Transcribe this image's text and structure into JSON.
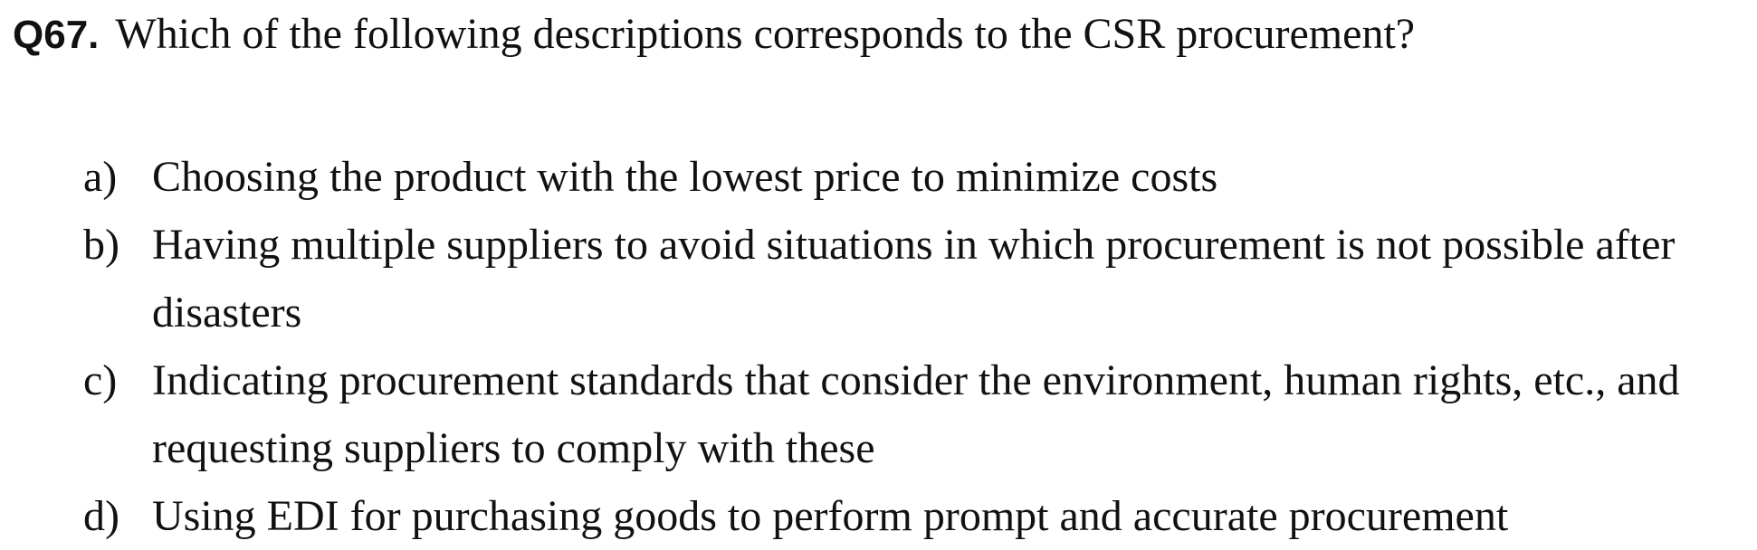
{
  "question": {
    "number": "Q67.",
    "text": "Which of the following descriptions corresponds to the CSR procurement?"
  },
  "options": [
    {
      "letter": "a)",
      "text": "Choosing the product with the lowest price to minimize costs"
    },
    {
      "letter": "b)",
      "text": "Having multiple suppliers to avoid situations in which procurement is not possible after disasters"
    },
    {
      "letter": "c)",
      "text": "Indicating procurement standards that consider the environment, human rights, etc., and requesting suppliers to comply with these"
    },
    {
      "letter": "d)",
      "text": "Using EDI for purchasing goods to perform prompt and accurate procurement"
    }
  ]
}
